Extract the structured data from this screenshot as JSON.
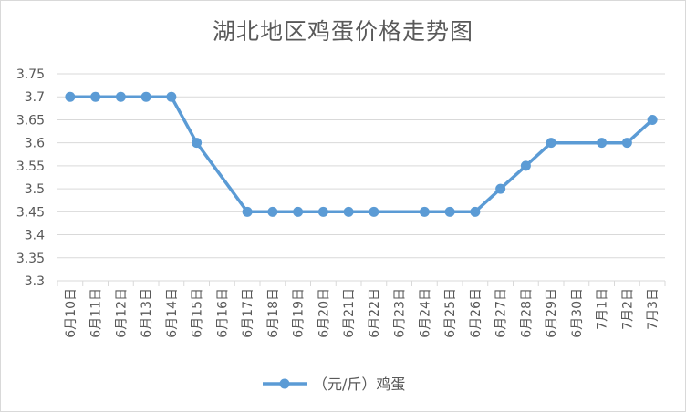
{
  "chart_data": {
    "type": "line",
    "title": "湖北地区鸡蛋价格走势图",
    "categories": [
      "6月10日",
      "6月11日",
      "6月12日",
      "6月13日",
      "6月14日",
      "6月15日",
      "6月16日",
      "6月17日",
      "6月18日",
      "6月19日",
      "6月20日",
      "6月21日",
      "6月22日",
      "6月23日",
      "6月24日",
      "6月25日",
      "6月26日",
      "6月27日",
      "6月28日",
      "6月29日",
      "6月30日",
      "7月1日",
      "7月2日",
      "7月3日"
    ],
    "series": [
      {
        "name": "（元/斤）鸡蛋",
        "values": [
          3.7,
          3.7,
          3.7,
          3.7,
          3.7,
          3.6,
          null,
          3.45,
          3.45,
          3.45,
          3.45,
          3.45,
          3.45,
          null,
          3.45,
          3.45,
          3.45,
          3.5,
          3.55,
          3.6,
          null,
          3.6,
          3.6,
          3.65
        ],
        "color": "#5b9bd5"
      }
    ],
    "yticks": [
      "3.75",
      "3.7",
      "3.65",
      "3.6",
      "3.55",
      "3.5",
      "3.45",
      "3.4",
      "3.35",
      "3.3"
    ],
    "ylim": [
      3.3,
      3.75
    ],
    "xlabel": "",
    "ylabel": "",
    "grid": true,
    "legend_position": "bottom"
  }
}
